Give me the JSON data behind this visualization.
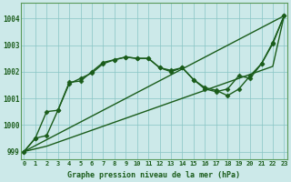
{
  "xlabel": "Graphe pression niveau de la mer (hPa)",
  "bg_color": "#cce9e9",
  "grid_color": "#88c4c4",
  "line_color": "#1a5c1a",
  "ylim": [
    998.7,
    1004.6
  ],
  "xlim": [
    -0.3,
    23.3
  ],
  "yticks": [
    999,
    1000,
    1001,
    1002,
    1003,
    1004
  ],
  "xticks": [
    0,
    1,
    2,
    3,
    4,
    5,
    6,
    7,
    8,
    9,
    10,
    11,
    12,
    13,
    14,
    15,
    16,
    17,
    18,
    19,
    20,
    21,
    22,
    23
  ],
  "series": [
    {
      "x": [
        0,
        23
      ],
      "y": [
        999.0,
        1004.1
      ],
      "marker": null,
      "ms": 0,
      "lw": 1.0
    },
    {
      "x": [
        0,
        1,
        2,
        3,
        4,
        5,
        6,
        7,
        8,
        9,
        10,
        11,
        12,
        13,
        14,
        15,
        16,
        17,
        18,
        19,
        20,
        21,
        22,
        23
      ],
      "y": [
        999.0,
        999.1,
        999.2,
        999.35,
        999.5,
        999.65,
        999.8,
        999.95,
        1000.1,
        1000.25,
        1000.4,
        1000.55,
        1000.7,
        1000.85,
        1001.0,
        1001.15,
        1001.3,
        1001.45,
        1001.6,
        1001.75,
        1001.9,
        1002.05,
        1002.2,
        1004.1
      ],
      "marker": null,
      "ms": 0,
      "lw": 1.0
    },
    {
      "x": [
        0,
        1,
        2,
        3,
        4,
        5,
        6,
        7,
        8,
        9,
        10,
        11,
        12,
        13,
        14,
        15,
        16,
        17,
        18,
        19,
        20,
        21,
        22,
        23
      ],
      "y": [
        999.0,
        999.5,
        1000.5,
        1000.55,
        1001.55,
        1001.75,
        1001.95,
        1002.3,
        1002.45,
        1002.55,
        1002.5,
        1002.5,
        1002.15,
        1002.0,
        1002.15,
        1001.7,
        1001.4,
        1001.3,
        1001.1,
        1001.35,
        1001.85,
        1002.3,
        1003.1,
        1004.1
      ],
      "marker": "D",
      "ms": 2.5,
      "lw": 1.0
    },
    {
      "x": [
        0,
        1,
        2,
        3,
        4,
        5,
        6,
        7,
        8,
        9,
        10,
        11,
        12,
        13,
        14,
        15,
        16,
        17,
        18,
        19,
        20,
        21,
        22,
        23
      ],
      "y": [
        999.0,
        999.5,
        999.6,
        1000.55,
        1001.6,
        1001.65,
        1002.0,
        1002.35,
        1002.45,
        1002.55,
        1002.5,
        1002.5,
        1002.15,
        1002.05,
        1002.15,
        1001.7,
        1001.35,
        1001.25,
        1001.35,
        1001.85,
        1001.75,
        1002.3,
        1003.05,
        1004.1
      ],
      "marker": "D",
      "ms": 2.5,
      "lw": 1.0
    }
  ]
}
